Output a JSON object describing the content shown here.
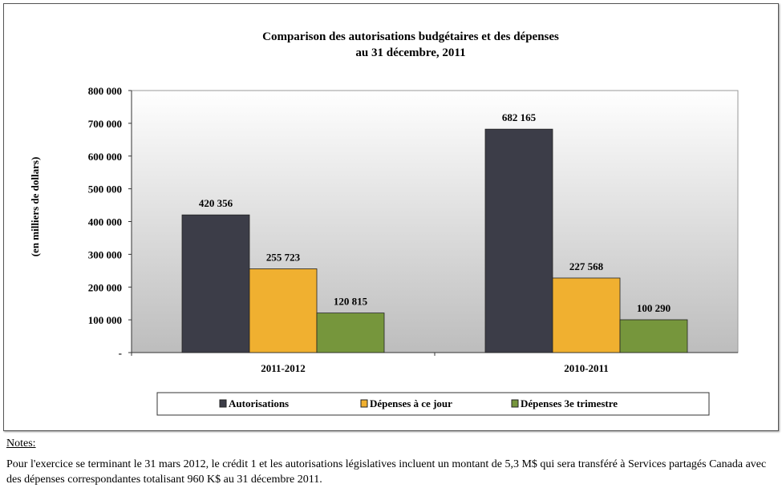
{
  "chart_data": {
    "type": "bar",
    "title": "Comparison  des autorisations  budgétaires  et des dépenses",
    "subtitle": "au 31 décembre, 2011",
    "ylabel": "(en milliers de dollars)",
    "xlabel": "",
    "ylim": [
      0,
      800000
    ],
    "yticks": [
      0,
      100000,
      200000,
      300000,
      400000,
      500000,
      600000,
      700000,
      800000
    ],
    "ytick_labels": [
      "-",
      "100 000",
      "200 000",
      "300 000",
      "400 000",
      "500 000",
      "600 000",
      "700 000",
      "800 000"
    ],
    "categories": [
      "2011-2012",
      "2010-2011"
    ],
    "series": [
      {
        "name": "Autorisations",
        "values": [
          420356,
          682165
        ],
        "labels": [
          "420 356",
          "682 165"
        ],
        "color": "#3c3d48"
      },
      {
        "name": "Dépenses à ce jour",
        "values": [
          255723,
          227568
        ],
        "labels": [
          "255 723",
          "227 568"
        ],
        "color": "#f0b030"
      },
      {
        "name": "Dépenses 3e trimestre",
        "values": [
          120815,
          100290
        ],
        "labels": [
          "120 815",
          "100 290"
        ],
        "color": "#76963c"
      }
    ],
    "grid": false,
    "legend": "bottom"
  },
  "notes": {
    "heading": "Notes:",
    "text": "Pour l'exercice se terminant le 31 mars 2012, le crédit 1 et les autorisations législatives incluent un montant de 5,3 M$ qui sera transféré à Services partagés Canada avec des dépenses correspondantes totalisant 960 K$ au 31 décembre 2011."
  }
}
